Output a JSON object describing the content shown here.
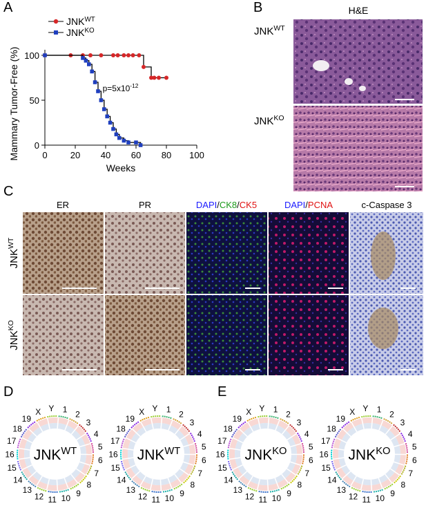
{
  "panel_labels": [
    "A",
    "B",
    "C",
    "D",
    "E"
  ],
  "chart_data": {
    "type": "line",
    "step": "post",
    "xlabel": "Weeks",
    "ylabel": "Mammary Tumor-Free (%)",
    "xlim": [
      0,
      100
    ],
    "xticks": [
      0,
      20,
      40,
      60,
      80,
      100
    ],
    "ylim": [
      0,
      100
    ],
    "yticks": [
      0,
      50,
      100
    ],
    "legend": "upper left",
    "annotation": {
      "text": "p=5x10",
      "sup": "-12",
      "x": 38,
      "y": 60
    },
    "series": [
      {
        "name": "JNK",
        "name_sup": "WT",
        "color": "#d62728",
        "marker": "circle",
        "x": [
          0,
          17,
          25,
          30,
          37,
          45,
          48,
          52,
          55,
          58,
          62,
          65,
          70,
          72,
          75,
          80
        ],
        "values": [
          100,
          100,
          100,
          100,
          100,
          100,
          100,
          100,
          100,
          100,
          100,
          87,
          75,
          75,
          75,
          75
        ]
      },
      {
        "name": "JNK",
        "name_sup": "KO",
        "color": "#1f3fbf",
        "marker": "square",
        "x": [
          0,
          25,
          27,
          29,
          31,
          33,
          35,
          37,
          39,
          41,
          43,
          45,
          47,
          49,
          52,
          55,
          60,
          63
        ],
        "values": [
          100,
          97,
          94,
          90,
          82,
          70,
          60,
          50,
          40,
          32,
          25,
          18,
          12,
          8,
          5,
          3,
          3,
          0
        ]
      }
    ]
  },
  "panel_b": {
    "title": "H&E",
    "rows": [
      {
        "label": "JNK",
        "sup": "WT"
      },
      {
        "label": "JNK",
        "sup": "KO"
      }
    ]
  },
  "panel_c": {
    "columns": [
      [
        {
          "text": "ER",
          "color": "#000000"
        }
      ],
      [
        {
          "text": "PR",
          "color": "#000000"
        }
      ],
      [
        {
          "text": "DAPI",
          "color": "#1a1aff"
        },
        {
          "text": "/",
          "color": "#000000"
        },
        {
          "text": "CK8",
          "color": "#1a9a1a"
        },
        {
          "text": "/",
          "color": "#000000"
        },
        {
          "text": "CK5",
          "color": "#e01010"
        }
      ],
      [
        {
          "text": "DAPI",
          "color": "#1a1aff"
        },
        {
          "text": "/",
          "color": "#000000"
        },
        {
          "text": "PCNA",
          "color": "#e01010"
        }
      ],
      [
        {
          "text": "c-Caspase 3",
          "color": "#000000"
        }
      ]
    ],
    "rows": [
      {
        "label": "JNK",
        "sup": "WT"
      },
      {
        "label": "JNK",
        "sup": "KO"
      }
    ]
  },
  "chromosomes": [
    "X",
    "Y",
    "1",
    "2",
    "3",
    "4",
    "5",
    "6",
    "7",
    "8",
    "9",
    "10",
    "11",
    "12",
    "13",
    "14",
    "15",
    "16",
    "17",
    "18",
    "19"
  ],
  "panel_d": {
    "plots": [
      {
        "label": "JNK",
        "sup": "WT"
      },
      {
        "label": "JNK",
        "sup": "WT"
      }
    ]
  },
  "panel_e": {
    "plots": [
      {
        "label": "JNK",
        "sup": "KO"
      },
      {
        "label": "JNK",
        "sup": "KO"
      }
    ]
  }
}
